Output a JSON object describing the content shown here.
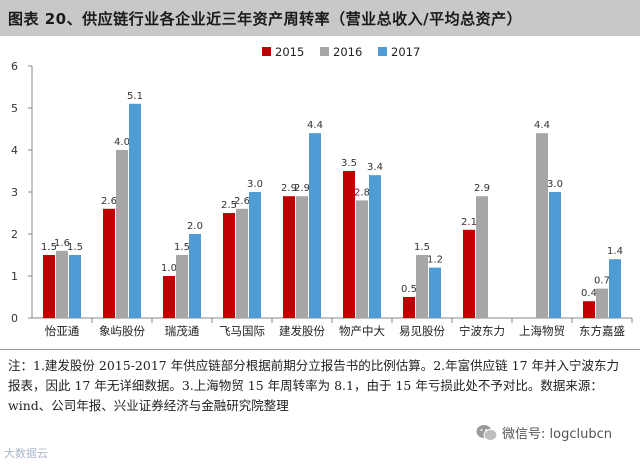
{
  "header": {
    "title": "图表 20、供应链行业各企业近三年资产周转率（营业总收入/平均总资产）"
  },
  "chart_data": {
    "type": "bar",
    "categories": [
      "怡亚通",
      "象屿股份",
      "瑞茂通",
      "飞马国际",
      "建发股份",
      "物产中大",
      "易见股份",
      "宁波东力",
      "上海物贸",
      "东方嘉盛"
    ],
    "series": [
      {
        "name": "2015",
        "color": "#c00000",
        "values": [
          1.5,
          2.6,
          1.0,
          2.5,
          2.9,
          3.5,
          0.5,
          2.1,
          null,
          0.4
        ]
      },
      {
        "name": "2016",
        "color": "#a6a6a6",
        "values": [
          1.6,
          4.0,
          1.5,
          2.6,
          2.9,
          2.8,
          1.5,
          2.9,
          4.4,
          0.7
        ]
      },
      {
        "name": "2017",
        "color": "#4f9bd6",
        "values": [
          1.5,
          5.1,
          2.0,
          3.0,
          4.4,
          3.4,
          1.2,
          null,
          3.0,
          1.4
        ]
      }
    ],
    "data_labels": [
      [
        "1.5",
        "1.6",
        "1.5"
      ],
      [
        "2.6",
        "4.0",
        "5.1"
      ],
      [
        "1.0",
        "1.5",
        "2.0"
      ],
      [
        "2.5",
        "2.6",
        "3.0"
      ],
      [
        "2.9",
        "2.9",
        "4.4"
      ],
      [
        "3.5",
        "2.8",
        "3.4"
      ],
      [
        "0.5",
        "1.5",
        "1.2"
      ],
      [
        "2.1",
        "2.9",
        ""
      ],
      [
        "",
        "4.4",
        "3.0"
      ],
      [
        "0.4",
        "0.7",
        "1.4"
      ]
    ],
    "yticks": [
      "0",
      "1",
      "2",
      "3",
      "4",
      "5",
      "6"
    ],
    "ylim": [
      0,
      6
    ],
    "grid": false,
    "legend": "top-center",
    "xlabel": "",
    "ylabel": "",
    "title": ""
  },
  "note": {
    "text": "注：1.建发股份 2015-2017 年供应链部分根据前期分立报告书的比例估算。2.年富供应链 17 年并入宁波东力报表，因此 17 年无详细数据。3.上海物贸 15 年周转率为 8.1，由于 15 年亏损此处不予对比。数据来源：wind、公司年报、兴业证券经济与金融研究院整理"
  },
  "watermarks": {
    "left": "大数据云",
    "right": "微信号: logclubcn",
    "right_icon": "wechat-icon"
  }
}
